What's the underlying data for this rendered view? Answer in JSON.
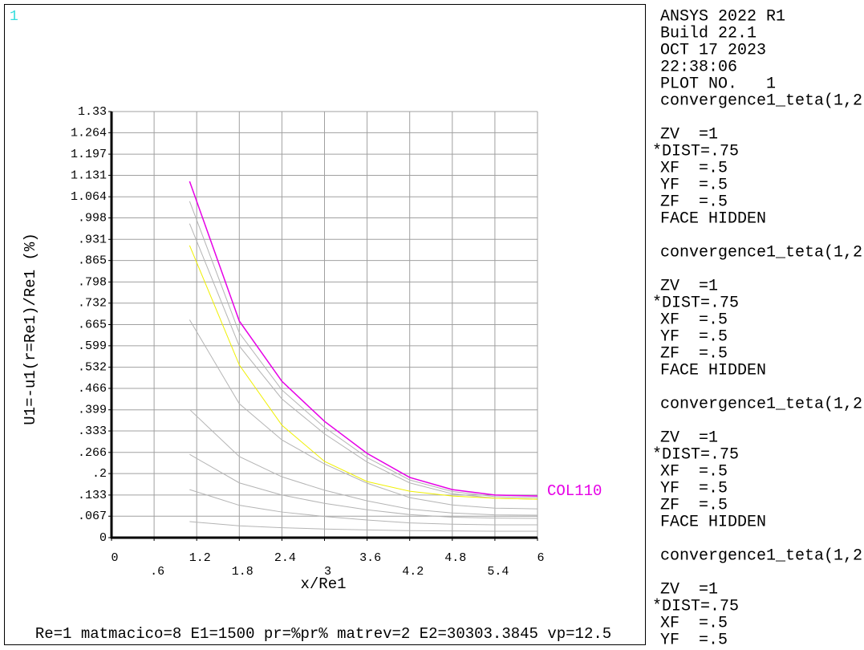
{
  "window_number": "1",
  "chart_data": {
    "type": "line",
    "xlabel": "x/Re1",
    "ylabel": "U1=-u1(r=Re1)/Re1 (%)",
    "x": [
      1.1,
      1.8,
      2.4,
      3,
      3.6,
      4.2,
      4.8,
      5.4,
      6
    ],
    "xlim": [
      0,
      6
    ],
    "ylim": [
      0,
      1.33
    ],
    "xticks": [
      0,
      {
        "value": 0.6,
        "label": ".6"
      },
      1.2,
      1.8,
      2.4,
      3,
      3.6,
      4.2,
      4.8,
      5.4,
      6
    ],
    "yticks": [
      0,
      {
        "value": 0.067,
        "label": ".067"
      },
      {
        "value": 0.133,
        "label": ".133"
      },
      {
        "value": 0.2,
        "label": ".2"
      },
      {
        "value": 0.266,
        "label": ".266"
      },
      {
        "value": 0.333,
        "label": ".333"
      },
      {
        "value": 0.399,
        "label": ".399"
      },
      {
        "value": 0.466,
        "label": ".466"
      },
      {
        "value": 0.532,
        "label": ".532"
      },
      {
        "value": 0.599,
        "label": ".599"
      },
      {
        "value": 0.665,
        "label": ".665"
      },
      {
        "value": 0.732,
        "label": ".732"
      },
      {
        "value": 0.798,
        "label": ".798"
      },
      {
        "value": 0.865,
        "label": ".865"
      },
      {
        "value": 0.931,
        "label": ".931"
      },
      {
        "value": 0.998,
        "label": ".998"
      },
      1.064,
      1.131,
      1.197,
      1.264,
      1.33
    ],
    "grid": true,
    "series": [
      {
        "color": "#b4b4b4",
        "values": [
          0.05,
          0.037,
          0.031,
          0.027,
          0.024,
          0.022,
          0.021,
          0.02,
          0.02
        ]
      },
      {
        "color": "#b4b4b4",
        "values": [
          0.15,
          0.101,
          0.08,
          0.066,
          0.055,
          0.046,
          0.042,
          0.04,
          0.04
        ]
      },
      {
        "color": "#b4b4b4",
        "values": [
          0.26,
          0.171,
          0.133,
          0.107,
          0.087,
          0.072,
          0.064,
          0.061,
          0.06
        ]
      },
      {
        "color": "#b4b4b4",
        "values": [
          0.4,
          0.253,
          0.19,
          0.148,
          0.115,
          0.089,
          0.077,
          0.071,
          0.07
        ]
      },
      {
        "color": "#b4b4b4",
        "values": [
          0.68,
          0.418,
          0.305,
          0.23,
          0.17,
          0.125,
          0.102,
          0.092,
          0.09
        ]
      },
      {
        "color": "#b4b4b4",
        "values": [
          0.98,
          0.598,
          0.433,
          0.324,
          0.236,
          0.171,
          0.137,
          0.123,
          0.12
        ]
      },
      {
        "color": "#b4b4b4",
        "values": [
          1.05,
          0.639,
          0.461,
          0.344,
          0.25,
          0.18,
          0.144,
          0.128,
          0.125
        ]
      },
      {
        "color": "#f0f000",
        "values": [
          0.912,
          0.539,
          0.351,
          0.238,
          0.175,
          0.145,
          0.13,
          0.123,
          0.12
        ]
      },
      {
        "name": "COL110",
        "color": "#e600e6",
        "values": [
          1.112,
          0.676,
          0.488,
          0.363,
          0.263,
          0.188,
          0.15,
          0.133,
          0.13
        ]
      }
    ]
  },
  "footer": "Re=1 matmacico=8 E1=1500 pr=%pr% matrev=2 E2=30303.3845 vp=12.5",
  "sidebar": {
    "header": [
      "ANSYS 2022 R1",
      "Build 22.1",
      "OCT 17 2023",
      "22:38:06",
      "PLOT NO.   1"
    ],
    "blocks": [
      {
        "title": "convergence1_teta(1,2",
        "lines": [
          "ZV  =1",
          "*DIST=.75",
          "XF  =.5",
          "YF  =.5",
          "ZF  =.5",
          "FACE HIDDEN"
        ]
      },
      {
        "title": "convergence1_teta(1,2",
        "lines": [
          "ZV  =1",
          "*DIST=.75",
          "XF  =.5",
          "YF  =.5",
          "ZF  =.5",
          "FACE HIDDEN"
        ]
      },
      {
        "title": "convergence1_teta(1,2",
        "lines": [
          "ZV  =1",
          "*DIST=.75",
          "XF  =.5",
          "YF  =.5",
          "ZF  =.5",
          "FACE HIDDEN"
        ]
      },
      {
        "title": "convergence1_teta(1,2",
        "lines": [
          "ZV  =1",
          "*DIST=.75",
          "XF  =.5",
          "YF  =.5"
        ]
      }
    ]
  }
}
